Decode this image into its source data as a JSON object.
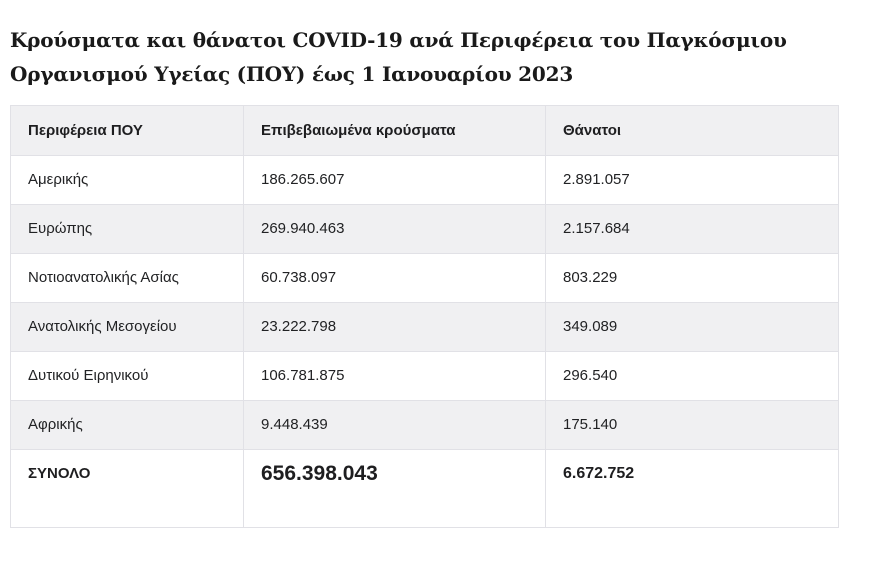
{
  "title": "Κρούσματα και θάνατοι COVID-19 ανά Περιφέρεια του Παγκόσμιου Οργανισμού Υγείας (ΠΟΥ) έως 1 Ιανουαρίου 2023",
  "table": {
    "columns": [
      "Περιφέρεια ΠΟΥ",
      "Επιβεβαιωμένα κρούσματα",
      "Θάνατοι"
    ],
    "rows": [
      {
        "region": "Αμερικής",
        "cases": "186.265.607",
        "deaths": "2.891.057"
      },
      {
        "region": "Ευρώπης",
        "cases": "269.940.463",
        "deaths": "2.157.684"
      },
      {
        "region": "Νοτιοανατολικής Ασίας",
        "cases": "60.738.097",
        "deaths": "803.229"
      },
      {
        "region": "Ανατολικής Μεσογείου",
        "cases": "23.222.798",
        "deaths": "349.089"
      },
      {
        "region": "Δυτικού Ειρηνικού",
        "cases": "106.781.875",
        "deaths": "296.540"
      },
      {
        "region": "Αφρικής",
        "cases": "9.448.439",
        "deaths": "175.140"
      }
    ],
    "total": {
      "label": "ΣΥΝΟΛΟ",
      "cases": "656.398.043",
      "deaths": "6.672.752"
    }
  },
  "colors": {
    "header_row_bg": "#f0f0f2",
    "alt_row_bg": "#f0f0f2",
    "border": "#e1e1e6",
    "text": "#212224",
    "title_text": "#1a1a1a"
  },
  "chart_data": {
    "type": "table",
    "title": "Κρούσματα και θάνατοι COVID-19 ανά Περιφέρεια του Παγκόσμιου Οργανισμού Υγείας (ΠΟΥ) έως 1 Ιανουαρίου 2023",
    "columns": [
      "Περιφέρεια ΠΟΥ",
      "Επιβεβαιωμένα κρούσματα",
      "Θάνατοι"
    ],
    "categories": [
      "Αμερικής",
      "Ευρώπης",
      "Νοτιοανατολικής Ασίας",
      "Ανατολικής Μεσογείου",
      "Δυτικού Ειρηνικού",
      "Αφρικής",
      "ΣΥΝΟΛΟ"
    ],
    "series": [
      {
        "name": "Επιβεβαιωμένα κρούσματα",
        "values": [
          186265607,
          269940463,
          60738097,
          23222798,
          106781875,
          9448439,
          656398043
        ]
      },
      {
        "name": "Θάνατοι",
        "values": [
          2891057,
          2157684,
          803229,
          349089,
          296540,
          175140,
          6672752
        ]
      }
    ]
  }
}
